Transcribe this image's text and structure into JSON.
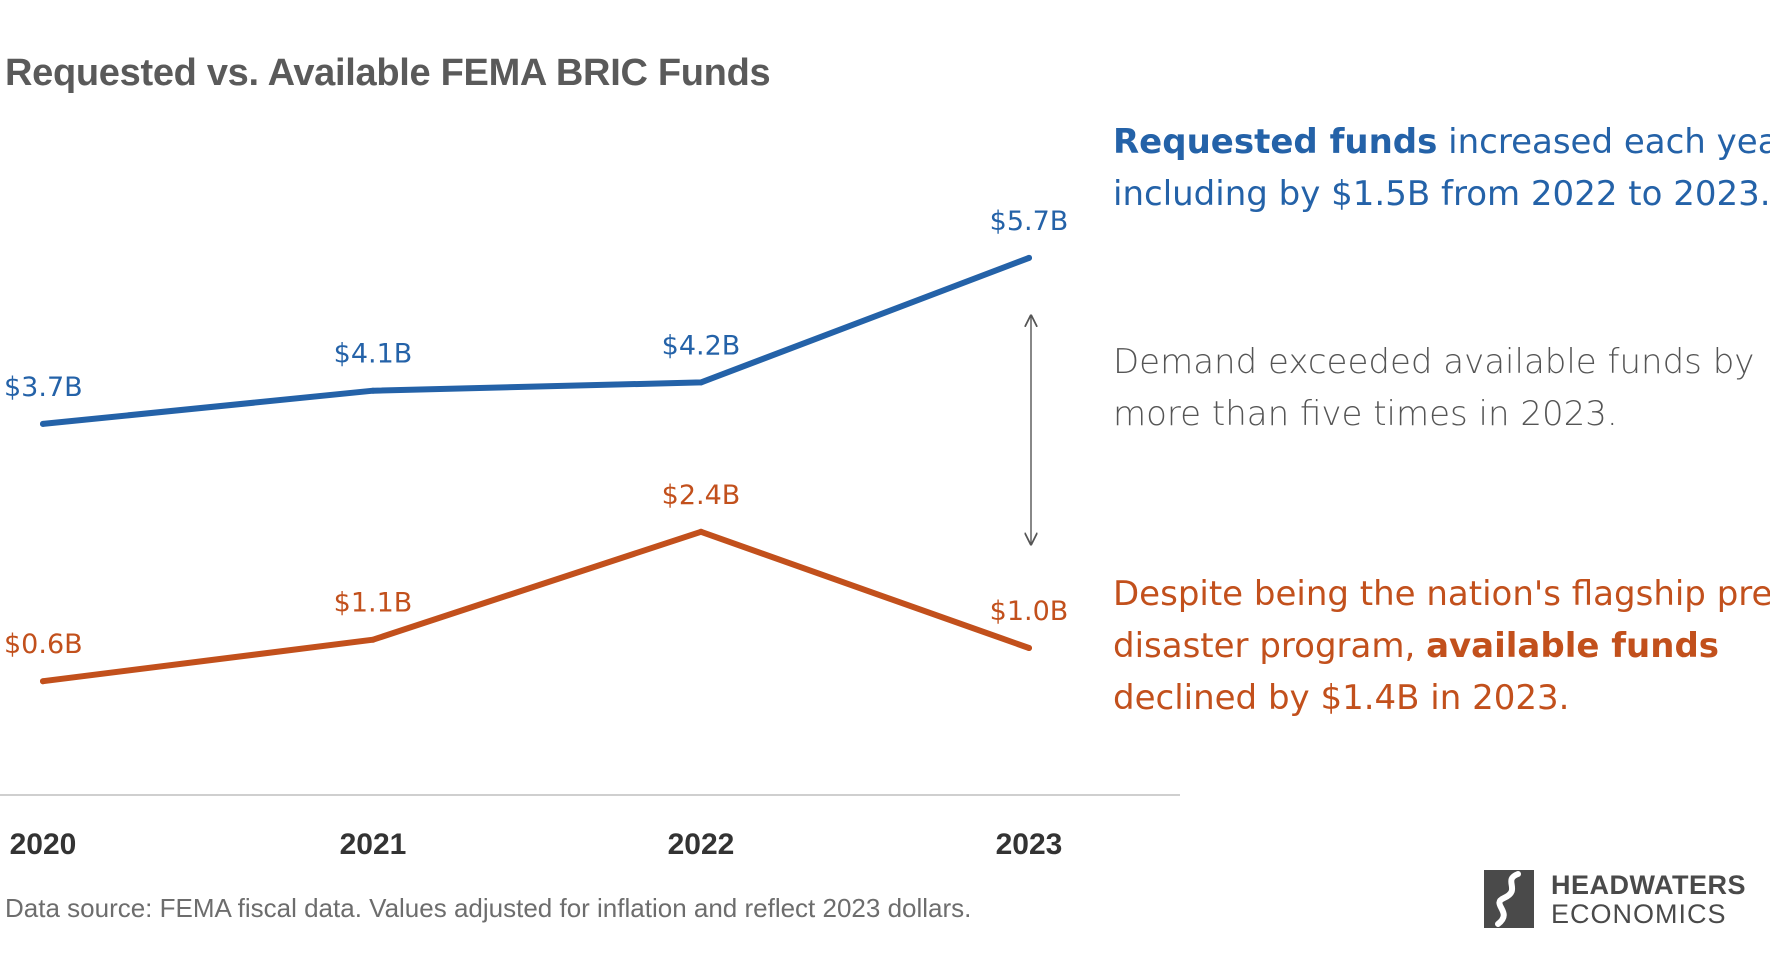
{
  "chart_data": {
    "type": "line",
    "title": "Requested vs. Available FEMA BRIC Funds",
    "categories": [
      "2020",
      "2021",
      "2022",
      "2023"
    ],
    "series": [
      {
        "values": [
          3.7,
          4.1,
          4.2,
          5.7
        ],
        "labels": [
          "$3.7B",
          "$4.1B",
          "$4.2B",
          "$5.7B"
        ],
        "color": "#2462a8"
      },
      {
        "values": [
          0.6,
          1.1,
          2.4,
          1.0
        ],
        "labels": [
          "$0.6B",
          "$1.1B",
          "$2.4B",
          "$1.0B"
        ],
        "color": "#c2501c"
      }
    ],
    "xlabel": "",
    "ylabel": "",
    "grid": false,
    "legend": "none"
  },
  "annotations": {
    "requested": {
      "line1_bold": "Requested funds",
      "line1_rest": " increased each year,",
      "line2": "including by $1.5B from 2022 to 2023."
    },
    "gap": {
      "line1": "Demand exceeded available funds by",
      "line2": "more than five times in 2023."
    },
    "available": {
      "line1": "Despite being the nation's flagship pre-",
      "line2_start": "disaster program, ",
      "line2_bold": "available funds",
      "line3": "declined by $1.4B in 2023."
    }
  },
  "source": "Data source: FEMA fiscal data. Values adjusted for inflation and reflect 2023 dollars.",
  "logo": {
    "line1": "HEADWATERS",
    "line2": "ECONOMICS"
  },
  "colors": {
    "requested": "#2462a8",
    "available": "#c2501c",
    "title": "#5a5a5a",
    "gap_text": "#555555",
    "axis": "#cfcfcf"
  }
}
